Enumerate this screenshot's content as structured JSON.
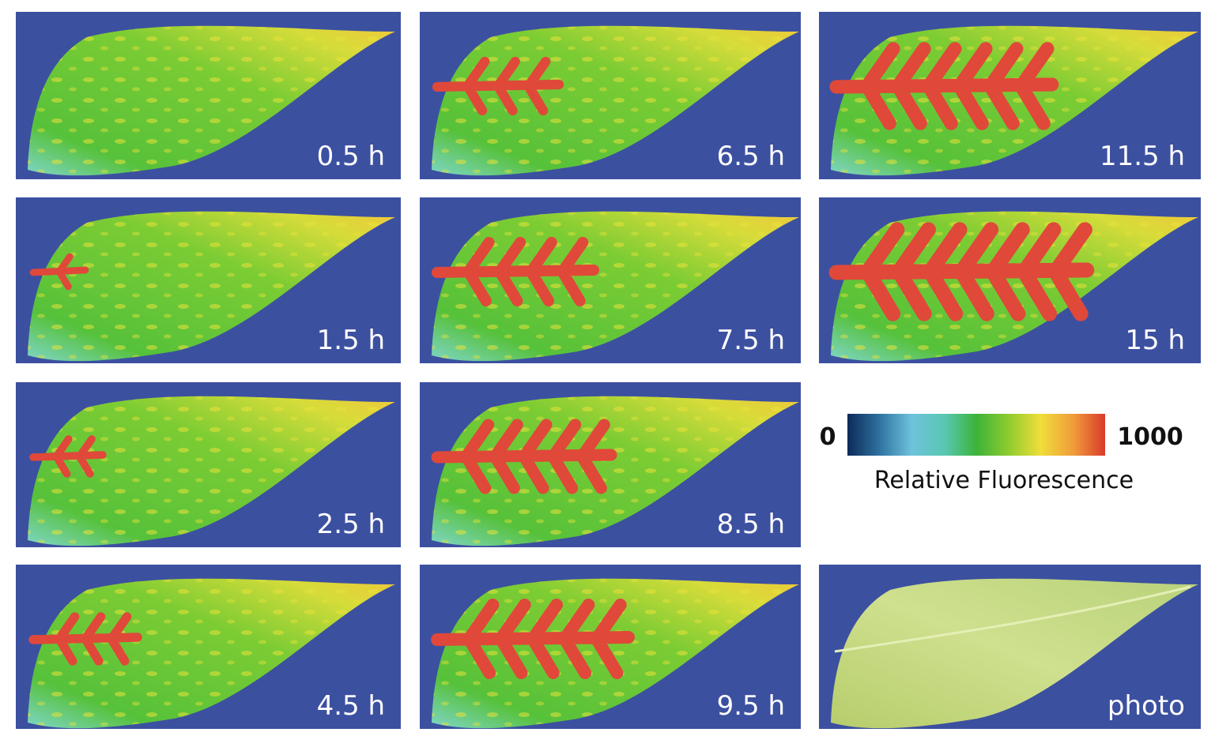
{
  "panels": [
    {
      "label": "0.5 h"
    },
    {
      "label": "1.5 h"
    },
    {
      "label": "2.5 h"
    },
    {
      "label": "4.5 h"
    },
    {
      "label": "6.5 h"
    },
    {
      "label": "7.5 h"
    },
    {
      "label": "8.5 h"
    },
    {
      "label": "9.5 h"
    },
    {
      "label": "11.5 h"
    },
    {
      "label": "15 h"
    },
    {
      "label": "photo"
    }
  ],
  "colorbar": {
    "min": 0,
    "max": 1000,
    "title": "Relative Fluorescence"
  }
}
